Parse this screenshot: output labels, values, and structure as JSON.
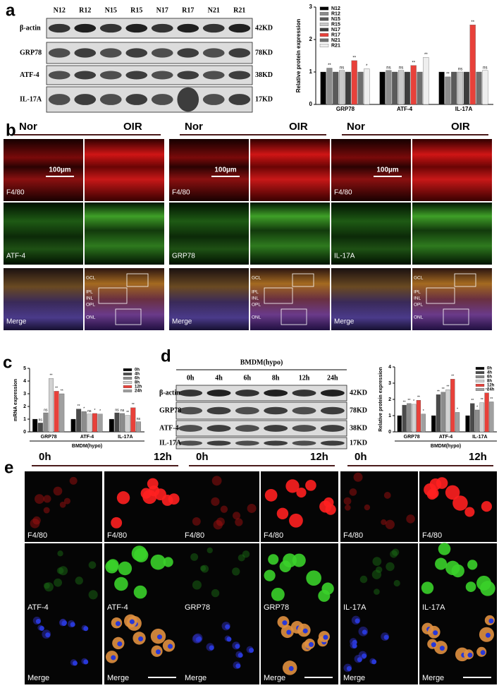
{
  "figure": {
    "panel_labels": [
      "a",
      "b",
      "c",
      "d",
      "e"
    ],
    "blot_a": {
      "lanes": [
        "N12",
        "R12",
        "N15",
        "R15",
        "N17",
        "R17",
        "N21",
        "R21"
      ],
      "rows": [
        "β-actin",
        "GRP78",
        "ATF-4",
        "IL-17A"
      ],
      "sizes": [
        "42KD",
        "78KD",
        "38KD",
        "17KD"
      ]
    },
    "panel_b": {
      "groups": [
        {
          "left": "Nor",
          "right": "OIR",
          "stains": [
            "F4/80",
            "ATF-4",
            "Merge"
          ],
          "scale": "100µm"
        },
        {
          "left": "Nor",
          "right": "OIR",
          "stains": [
            "F4/80",
            "GRP78",
            "Merge"
          ],
          "scale": "100µm"
        },
        {
          "left": "Nor",
          "right": "OIR",
          "stains": [
            "F4/80",
            "IL-17A",
            "Merge"
          ],
          "scale": "100µm"
        }
      ],
      "layers": [
        "GCL",
        "IPL",
        "INL",
        "OPL",
        "ONL"
      ]
    },
    "blot_d": {
      "title": "BMDM(hypo)",
      "lanes": [
        "0h",
        "4h",
        "6h",
        "8h",
        "12h",
        "24h"
      ],
      "rows": [
        "β-actin",
        "GRP78",
        "ATF-4",
        "IL-17A"
      ],
      "sizes": [
        "42KD",
        "78KD",
        "38KD",
        "17KD"
      ]
    },
    "panel_e": {
      "groups": [
        {
          "left": "0h",
          "right": "12h",
          "stains": [
            "F4/80",
            "ATF-4",
            "Merge"
          ]
        },
        {
          "left": "0h",
          "right": "12h",
          "stains": [
            "F4/80",
            "GRP78",
            "Merge"
          ]
        },
        {
          "left": "0h",
          "right": "12h",
          "stains": [
            "F4/80",
            "IL-17A",
            "Merge"
          ]
        }
      ]
    }
  },
  "chart_data": [
    {
      "type": "bar",
      "ylabel": "Relative protein expression",
      "categories": [
        "GRP78",
        "ATF-4",
        "IL-17A"
      ],
      "ylim": [
        0,
        3
      ],
      "yticks": [
        0,
        1,
        2,
        3
      ],
      "legend": "upper left",
      "series": [
        {
          "name": "N12",
          "color": "#000000",
          "values": [
            1,
            1,
            1
          ]
        },
        {
          "name": "R12",
          "color": "#8c8c8c",
          "values": [
            1.12,
            1.05,
            0.85
          ],
          "annotations": [
            "**",
            "ns",
            "**"
          ]
        },
        {
          "name": "N15",
          "color": "#5a5a5a",
          "values": [
            1,
            1,
            1
          ]
        },
        {
          "name": "R15",
          "color": "#c8c8c8",
          "values": [
            1.05,
            1.05,
            1.0
          ],
          "annotations": [
            "ns",
            "ns",
            "ns"
          ]
        },
        {
          "name": "N17",
          "color": "#3c3c3c",
          "values": [
            1,
            1,
            1
          ]
        },
        {
          "name": "R17",
          "color": "#e8413a",
          "values": [
            1.35,
            1.2,
            2.45
          ],
          "annotations": [
            "**",
            "**",
            "**"
          ]
        },
        {
          "name": "N21",
          "color": "#6e6e6e",
          "values": [
            1,
            1,
            1
          ]
        },
        {
          "name": "R21",
          "color": "#eeeeee",
          "values": [
            1.1,
            1.45,
            1.05
          ],
          "annotations": [
            "*",
            "**",
            "ns"
          ]
        }
      ]
    },
    {
      "type": "bar",
      "ylabel": "mRNA expression",
      "xlabel": "BMDM(hypo)",
      "categories": [
        "GRP78",
        "ATF-4",
        "IL-17A"
      ],
      "ylim": [
        0,
        5
      ],
      "yticks": [
        0,
        1,
        2,
        3,
        4,
        5
      ],
      "legend": "upper right",
      "series": [
        {
          "name": "0h",
          "color": "#000000",
          "values": [
            1,
            1,
            1
          ]
        },
        {
          "name": "4h",
          "color": "#4a4a4a",
          "values": [
            0.7,
            1.8,
            1.5
          ],
          "annotations": [
            "ns",
            "**",
            "ns"
          ]
        },
        {
          "name": "6h",
          "color": "#8c8c8c",
          "values": [
            1.5,
            1.6,
            1.45
          ],
          "annotations": [
            "ns",
            "*",
            "ns"
          ]
        },
        {
          "name": "8h",
          "color": "#d2d2d2",
          "values": [
            4.2,
            1.4,
            1.3
          ],
          "annotations": [
            "**",
            "ns",
            "**"
          ]
        },
        {
          "name": "12h",
          "color": "#e8413a",
          "values": [
            3.2,
            1.45,
            1.9
          ],
          "annotations": [
            "**",
            "*",
            "**"
          ]
        },
        {
          "name": "24h",
          "color": "#a0a0a0",
          "values": [
            3.0,
            1.4,
            0.8
          ],
          "annotations": [
            "**",
            "*",
            "ns"
          ]
        }
      ]
    },
    {
      "type": "bar",
      "ylabel": "Relative protein expression",
      "xlabel": "BMDM(hypo)",
      "categories": [
        "GRP78",
        "ATF-4",
        "IL-17A"
      ],
      "ylim": [
        0,
        4
      ],
      "yticks": [
        0,
        1,
        2,
        3,
        4
      ],
      "legend": "upper right",
      "series": [
        {
          "name": "0h",
          "color": "#000000",
          "values": [
            1,
            1,
            1
          ]
        },
        {
          "name": "4h",
          "color": "#4a4a4a",
          "values": [
            1.65,
            2.3,
            1.75
          ],
          "annotations": [
            "**",
            "**",
            "**"
          ]
        },
        {
          "name": "6h",
          "color": "#8c8c8c",
          "values": [
            1.75,
            2.45,
            1.35
          ],
          "annotations": [
            "**",
            "**",
            "*"
          ]
        },
        {
          "name": "8h",
          "color": "#d2d2d2",
          "values": [
            1.7,
            2.6,
            1.8
          ],
          "annotations": [
            "*",
            "**",
            "**"
          ]
        },
        {
          "name": "12h",
          "color": "#e8413a",
          "values": [
            1.95,
            3.25,
            2.4
          ],
          "annotations": [
            "**",
            "**",
            "**"
          ]
        },
        {
          "name": "24h",
          "color": "#a0a0a0",
          "values": [
            1.1,
            1.2,
            1.85
          ],
          "annotations": [
            "*",
            "*",
            "**"
          ]
        }
      ]
    }
  ]
}
